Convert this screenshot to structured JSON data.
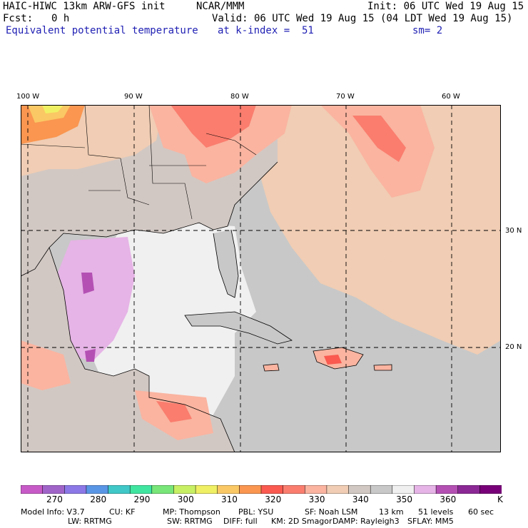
{
  "header": {
    "model_title": "HAIC-HIWC 13km ARW-GFS init",
    "org": "NCAR/MMM",
    "init": "Init: 06 UTC Wed 19 Aug 15",
    "fcst_label": "Fcst:",
    "fcst_value": "0 h",
    "valid": "Valid: 06 UTC Wed 19 Aug 15 (04 LDT Wed 19 Aug 15)",
    "field_name": "Equivalent potential temperature",
    "level": "at k-index =  51",
    "smooth": "sm= 2"
  },
  "map": {
    "lon_labels": [
      "100 W",
      "90 W",
      "80 W",
      "70 W",
      "60 W"
    ],
    "lat_labels": [
      "30 N",
      "20 N"
    ]
  },
  "colorbar": {
    "unit": "K",
    "tick_labels": [
      "270",
      "280",
      "290",
      "300",
      "310",
      "320",
      "330",
      "340",
      "350",
      "360"
    ],
    "colors": [
      "#c85ac8",
      "#a064c8",
      "#8c78e6",
      "#5a96e6",
      "#40c8c8",
      "#40e6a0",
      "#78e678",
      "#c8f064",
      "#f0f064",
      "#fac864",
      "#fa9650",
      "#fa5a50",
      "#fa7d6e",
      "#fab4a0",
      "#f0cdb4",
      "#d2c8c3",
      "#c8c8c8",
      "#f0f0f0",
      "#e6b4e6",
      "#b450b4",
      "#8c2896",
      "#780078"
    ]
  },
  "model_info": {
    "line1": [
      "Model Info: V3.7",
      "CU: KF",
      "MP: Thompson",
      "PBL: YSU",
      "SF: Noah LSM",
      "13 km",
      "51 levels",
      "60 sec"
    ],
    "line2": [
      "LW: RRTMG",
      "SW: RRTMG",
      "DIFF: full",
      "KM: 2D Smagor",
      "DAMP: Rayleigh3",
      "SFLAY: MM5"
    ]
  }
}
